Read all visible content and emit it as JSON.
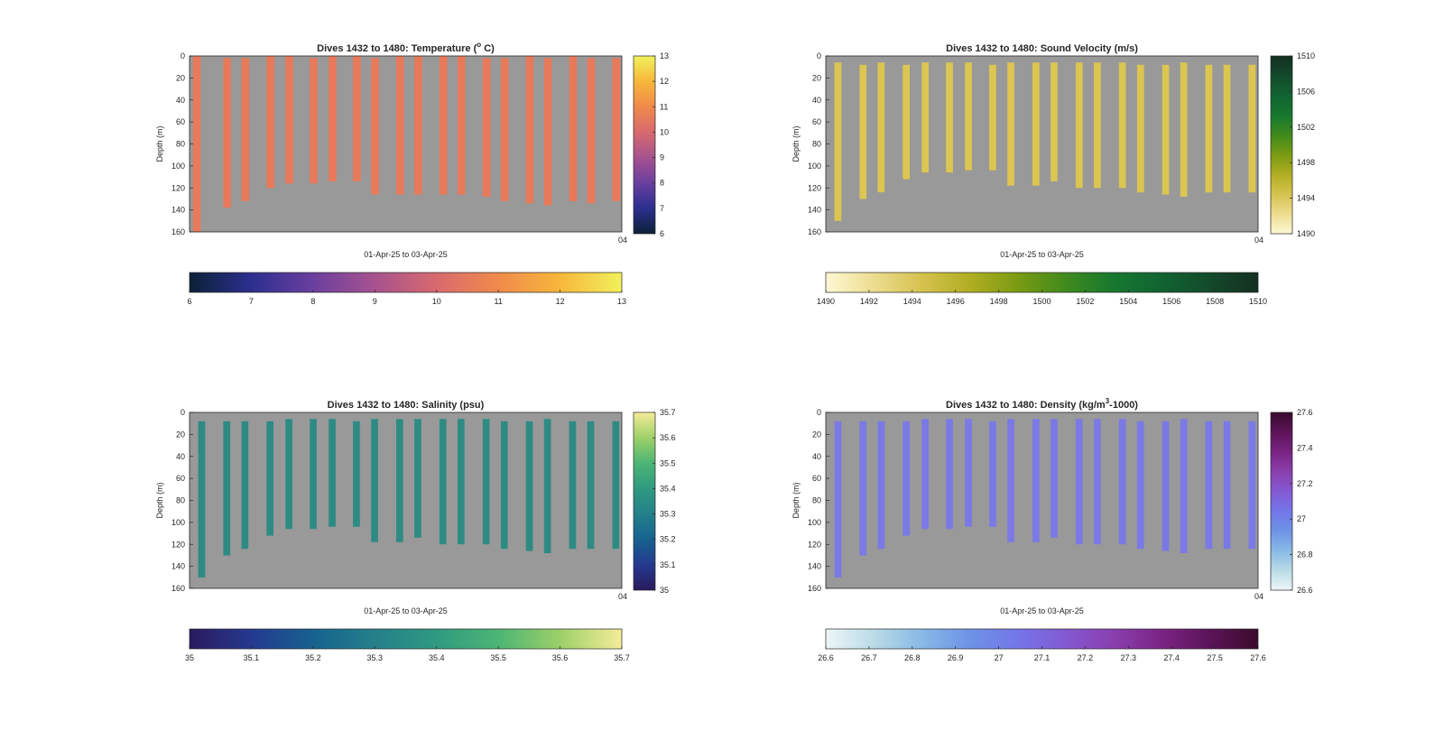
{
  "figure": {
    "background": "#ffffff",
    "plot_background": "#999999"
  },
  "chart_data": [
    {
      "type": "heatmap",
      "title_main": "Dives 1432 to 1480: Temperature (",
      "title_sup": "o",
      "title_end": " C)",
      "ylabel": "Depth (m)",
      "xlabel": "01-Apr-25 to 03-Apr-25",
      "y_ticks": [
        "0",
        "20",
        "40",
        "60",
        "80",
        "100",
        "120",
        "140",
        "160"
      ],
      "ylim": [
        0,
        160
      ],
      "x_corner_label": "04",
      "clim": [
        6,
        13
      ],
      "colorbar_ticks": [
        "6",
        "7",
        "8",
        "9",
        "10",
        "11",
        "12",
        "13"
      ],
      "colormap": [
        "#0b2136",
        "#2c2f8f",
        "#6a3f9e",
        "#a6528f",
        "#d86a6e",
        "#f08a4b",
        "#f7b73b",
        "#f1f15c"
      ],
      "profile_color": "#e8795a",
      "profiles": [
        {
          "x": 0.008,
          "w": 0.018,
          "top": 0,
          "bottom": 160
        },
        {
          "x": 0.078,
          "w": 0.018,
          "top": 2,
          "bottom": 138
        },
        {
          "x": 0.12,
          "w": 0.018,
          "top": 2,
          "bottom": 132
        },
        {
          "x": 0.178,
          "w": 0.018,
          "top": 0,
          "bottom": 120
        },
        {
          "x": 0.222,
          "w": 0.018,
          "top": 0,
          "bottom": 116
        },
        {
          "x": 0.278,
          "w": 0.018,
          "top": 2,
          "bottom": 116
        },
        {
          "x": 0.322,
          "w": 0.018,
          "top": 0,
          "bottom": 114
        },
        {
          "x": 0.378,
          "w": 0.018,
          "top": 0,
          "bottom": 114
        },
        {
          "x": 0.42,
          "w": 0.018,
          "top": 2,
          "bottom": 126
        },
        {
          "x": 0.478,
          "w": 0.018,
          "top": 0,
          "bottom": 126
        },
        {
          "x": 0.52,
          "w": 0.018,
          "top": 0,
          "bottom": 126
        },
        {
          "x": 0.578,
          "w": 0.018,
          "top": 0,
          "bottom": 126
        },
        {
          "x": 0.62,
          "w": 0.018,
          "top": 0,
          "bottom": 126
        },
        {
          "x": 0.678,
          "w": 0.018,
          "top": 2,
          "bottom": 128
        },
        {
          "x": 0.72,
          "w": 0.018,
          "top": 2,
          "bottom": 132
        },
        {
          "x": 0.778,
          "w": 0.018,
          "top": 0,
          "bottom": 134
        },
        {
          "x": 0.82,
          "w": 0.018,
          "top": 2,
          "bottom": 136
        },
        {
          "x": 0.878,
          "w": 0.018,
          "top": 0,
          "bottom": 132
        },
        {
          "x": 0.92,
          "w": 0.018,
          "top": 2,
          "bottom": 134
        },
        {
          "x": 0.978,
          "w": 0.018,
          "top": 2,
          "bottom": 132
        }
      ]
    },
    {
      "type": "heatmap",
      "title_main": "Dives 1432 to 1480: Sound Velocity (m/s)",
      "title_sup": "",
      "title_end": "",
      "ylabel": "Depth (m)",
      "xlabel": "01-Apr-25 to 03-Apr-25",
      "y_ticks": [
        "0",
        "20",
        "40",
        "60",
        "80",
        "100",
        "120",
        "140",
        "160"
      ],
      "ylim": [
        0,
        160
      ],
      "x_corner_label": "04",
      "clim": [
        1490,
        1510
      ],
      "colorbar_ticks": [
        "1490",
        "1492",
        "1494",
        "1496",
        "1498",
        "1500",
        "1502",
        "1504",
        "1506",
        "1508",
        "1510"
      ],
      "colormap": [
        "#fdf8d4",
        "#ecdd8f",
        "#d6c24f",
        "#b0ae22",
        "#7a9b12",
        "#3f8a1d",
        "#16782f",
        "#116331",
        "#134a2b",
        "#132f1f"
      ],
      "profile_color": "#dcc651",
      "profiles": [
        {
          "x": 0.02,
          "w": 0.016,
          "top": 6,
          "bottom": 150
        },
        {
          "x": 0.078,
          "w": 0.016,
          "top": 8,
          "bottom": 130
        },
        {
          "x": 0.12,
          "w": 0.016,
          "top": 6,
          "bottom": 124
        },
        {
          "x": 0.178,
          "w": 0.016,
          "top": 8,
          "bottom": 112
        },
        {
          "x": 0.222,
          "w": 0.016,
          "top": 6,
          "bottom": 106
        },
        {
          "x": 0.278,
          "w": 0.016,
          "top": 6,
          "bottom": 106
        },
        {
          "x": 0.322,
          "w": 0.016,
          "top": 6,
          "bottom": 104
        },
        {
          "x": 0.378,
          "w": 0.016,
          "top": 8,
          "bottom": 104
        },
        {
          "x": 0.42,
          "w": 0.016,
          "top": 6,
          "bottom": 118
        },
        {
          "x": 0.478,
          "w": 0.016,
          "top": 6,
          "bottom": 118
        },
        {
          "x": 0.52,
          "w": 0.016,
          "top": 6,
          "bottom": 114
        },
        {
          "x": 0.578,
          "w": 0.016,
          "top": 6,
          "bottom": 120
        },
        {
          "x": 0.62,
          "w": 0.016,
          "top": 6,
          "bottom": 120
        },
        {
          "x": 0.678,
          "w": 0.016,
          "top": 6,
          "bottom": 120
        },
        {
          "x": 0.72,
          "w": 0.016,
          "top": 8,
          "bottom": 124
        },
        {
          "x": 0.778,
          "w": 0.016,
          "top": 8,
          "bottom": 126
        },
        {
          "x": 0.82,
          "w": 0.016,
          "top": 6,
          "bottom": 128
        },
        {
          "x": 0.878,
          "w": 0.016,
          "top": 8,
          "bottom": 124
        },
        {
          "x": 0.92,
          "w": 0.016,
          "top": 8,
          "bottom": 124
        },
        {
          "x": 0.978,
          "w": 0.016,
          "top": 8,
          "bottom": 124
        }
      ]
    },
    {
      "type": "heatmap",
      "title_main": "Dives 1432 to 1480: Salinity (psu)",
      "title_sup": "",
      "title_end": "",
      "ylabel": "Depth (m)",
      "xlabel": "01-Apr-25 to 03-Apr-25",
      "y_ticks": [
        "0",
        "20",
        "40",
        "60",
        "80",
        "100",
        "120",
        "140",
        "160"
      ],
      "ylim": [
        0,
        160
      ],
      "x_corner_label": "04",
      "clim": [
        35,
        35.7
      ],
      "colorbar_ticks": [
        "35",
        "35.1",
        "35.2",
        "35.3",
        "35.4",
        "35.5",
        "35.6",
        "35.7"
      ],
      "colormap": [
        "#2a1a5e",
        "#25398f",
        "#17628f",
        "#24808a",
        "#2f9a80",
        "#4cb574",
        "#9dd068",
        "#f5ec9a"
      ],
      "profile_color": "#2e8b84",
      "profiles": [
        {
          "x": 0.02,
          "w": 0.016,
          "top": 8,
          "bottom": 150
        },
        {
          "x": 0.078,
          "w": 0.016,
          "top": 8,
          "bottom": 130
        },
        {
          "x": 0.12,
          "w": 0.016,
          "top": 8,
          "bottom": 124
        },
        {
          "x": 0.178,
          "w": 0.016,
          "top": 8,
          "bottom": 112
        },
        {
          "x": 0.222,
          "w": 0.016,
          "top": 6,
          "bottom": 106
        },
        {
          "x": 0.278,
          "w": 0.016,
          "top": 6,
          "bottom": 106
        },
        {
          "x": 0.322,
          "w": 0.016,
          "top": 6,
          "bottom": 104
        },
        {
          "x": 0.378,
          "w": 0.016,
          "top": 8,
          "bottom": 104
        },
        {
          "x": 0.42,
          "w": 0.016,
          "top": 6,
          "bottom": 118
        },
        {
          "x": 0.478,
          "w": 0.016,
          "top": 6,
          "bottom": 118
        },
        {
          "x": 0.52,
          "w": 0.016,
          "top": 6,
          "bottom": 114
        },
        {
          "x": 0.578,
          "w": 0.016,
          "top": 6,
          "bottom": 120
        },
        {
          "x": 0.62,
          "w": 0.016,
          "top": 6,
          "bottom": 120
        },
        {
          "x": 0.678,
          "w": 0.016,
          "top": 6,
          "bottom": 120
        },
        {
          "x": 0.72,
          "w": 0.016,
          "top": 8,
          "bottom": 124
        },
        {
          "x": 0.778,
          "w": 0.016,
          "top": 8,
          "bottom": 126
        },
        {
          "x": 0.82,
          "w": 0.016,
          "top": 6,
          "bottom": 128
        },
        {
          "x": 0.878,
          "w": 0.016,
          "top": 8,
          "bottom": 124
        },
        {
          "x": 0.92,
          "w": 0.016,
          "top": 8,
          "bottom": 124
        },
        {
          "x": 0.978,
          "w": 0.016,
          "top": 8,
          "bottom": 124
        }
      ]
    },
    {
      "type": "heatmap",
      "title_main": "Dives 1432 to 1480: Density (kg/m",
      "title_sup": "3",
      "title_end": "-1000)",
      "ylabel": "Depth (m)",
      "xlabel": "01-Apr-25 to 03-Apr-25",
      "y_ticks": [
        "0",
        "20",
        "40",
        "60",
        "80",
        "100",
        "120",
        "140",
        "160"
      ],
      "ylim": [
        0,
        160
      ],
      "x_corner_label": "04",
      "clim": [
        26.6,
        27.6
      ],
      "colorbar_ticks": [
        "26.6",
        "26.7",
        "26.8",
        "26.9",
        "27",
        "27.1",
        "27.2",
        "27.3",
        "27.4",
        "27.5",
        "27.6"
      ],
      "colormap": [
        "#eef6f7",
        "#b9dbe6",
        "#88b9e6",
        "#6d93e6",
        "#7476e8",
        "#8459d2",
        "#8a3fae",
        "#7a2384",
        "#5b1458",
        "#3a0b2c"
      ],
      "profile_color": "#7b79e6",
      "profiles": [
        {
          "x": 0.02,
          "w": 0.016,
          "top": 8,
          "bottom": 150
        },
        {
          "x": 0.078,
          "w": 0.016,
          "top": 8,
          "bottom": 130
        },
        {
          "x": 0.12,
          "w": 0.016,
          "top": 8,
          "bottom": 124
        },
        {
          "x": 0.178,
          "w": 0.016,
          "top": 8,
          "bottom": 112
        },
        {
          "x": 0.222,
          "w": 0.016,
          "top": 6,
          "bottom": 106
        },
        {
          "x": 0.278,
          "w": 0.016,
          "top": 6,
          "bottom": 106
        },
        {
          "x": 0.322,
          "w": 0.016,
          "top": 6,
          "bottom": 104
        },
        {
          "x": 0.378,
          "w": 0.016,
          "top": 8,
          "bottom": 104
        },
        {
          "x": 0.42,
          "w": 0.016,
          "top": 6,
          "bottom": 118
        },
        {
          "x": 0.478,
          "w": 0.016,
          "top": 6,
          "bottom": 118
        },
        {
          "x": 0.52,
          "w": 0.016,
          "top": 6,
          "bottom": 114
        },
        {
          "x": 0.578,
          "w": 0.016,
          "top": 6,
          "bottom": 120
        },
        {
          "x": 0.62,
          "w": 0.016,
          "top": 6,
          "bottom": 120
        },
        {
          "x": 0.678,
          "w": 0.016,
          "top": 6,
          "bottom": 120
        },
        {
          "x": 0.72,
          "w": 0.016,
          "top": 8,
          "bottom": 124
        },
        {
          "x": 0.778,
          "w": 0.016,
          "top": 8,
          "bottom": 126
        },
        {
          "x": 0.82,
          "w": 0.016,
          "top": 6,
          "bottom": 128
        },
        {
          "x": 0.878,
          "w": 0.016,
          "top": 8,
          "bottom": 124
        },
        {
          "x": 0.92,
          "w": 0.016,
          "top": 8,
          "bottom": 124
        },
        {
          "x": 0.978,
          "w": 0.016,
          "top": 8,
          "bottom": 124
        }
      ]
    }
  ]
}
